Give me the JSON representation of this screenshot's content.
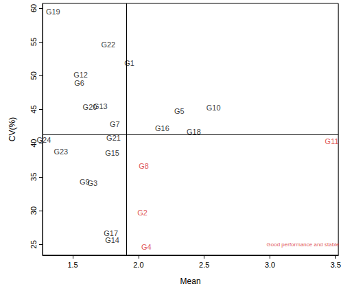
{
  "chart_data": {
    "type": "scatter",
    "x_label": "Mean",
    "y_label": "CV(%)",
    "xlim": [
      1.27,
      3.52
    ],
    "ylim": [
      23.4,
      60.7
    ],
    "xticks": [
      1.5,
      {
        "value": 2,
        "label": "2.0"
      },
      2.5,
      {
        "value": 3,
        "label": "3.0"
      },
      3.5
    ],
    "yticks": [
      25,
      30,
      35,
      40,
      45,
      50,
      55,
      60
    ],
    "grid": false,
    "marker": "label",
    "reference_lines": {
      "x": 1.91,
      "y": 41.3
    },
    "labels": [
      "G19",
      "G22",
      "G1",
      "G12",
      "G6",
      "G20",
      "G13",
      "G5",
      "G10",
      "G16",
      "G18",
      "G7",
      "G21",
      "G24",
      "G11",
      "G23",
      "G15",
      "G8",
      "G9",
      "G3",
      "G2",
      "G17",
      "G14",
      "G4"
    ],
    "x": [
      1.35,
      1.77,
      1.93,
      1.56,
      1.55,
      1.63,
      1.71,
      2.31,
      2.57,
      2.18,
      2.42,
      1.82,
      1.81,
      1.28,
      3.47,
      1.41,
      1.8,
      2.04,
      1.59,
      1.65,
      2.03,
      1.79,
      1.8,
      2.06
    ],
    "values": [
      59.5,
      54.6,
      51.9,
      50.1,
      48.9,
      45.4,
      45.5,
      44.7,
      45.3,
      42.2,
      41.7,
      42.8,
      40.8,
      40.5,
      40.3,
      38.7,
      38.5,
      36.6,
      34.3,
      34.1,
      29.7,
      26.7,
      25.6,
      24.6
    ],
    "colors": [
      "#000000",
      "#000000",
      "#000000",
      "#000000",
      "#000000",
      "#000000",
      "#000000",
      "#000000",
      "#000000",
      "#000000",
      "#000000",
      "#000000",
      "#000000",
      "#000000",
      "#d62728",
      "#000000",
      "#000000",
      "#d62728",
      "#000000",
      "#000000",
      "#d62728",
      "#000000",
      "#000000",
      "#d62728"
    ],
    "annotations": [
      {
        "text": "Good performance and stable",
        "x": 3.25,
        "y": 25.0,
        "color": "#d62728"
      }
    ]
  }
}
